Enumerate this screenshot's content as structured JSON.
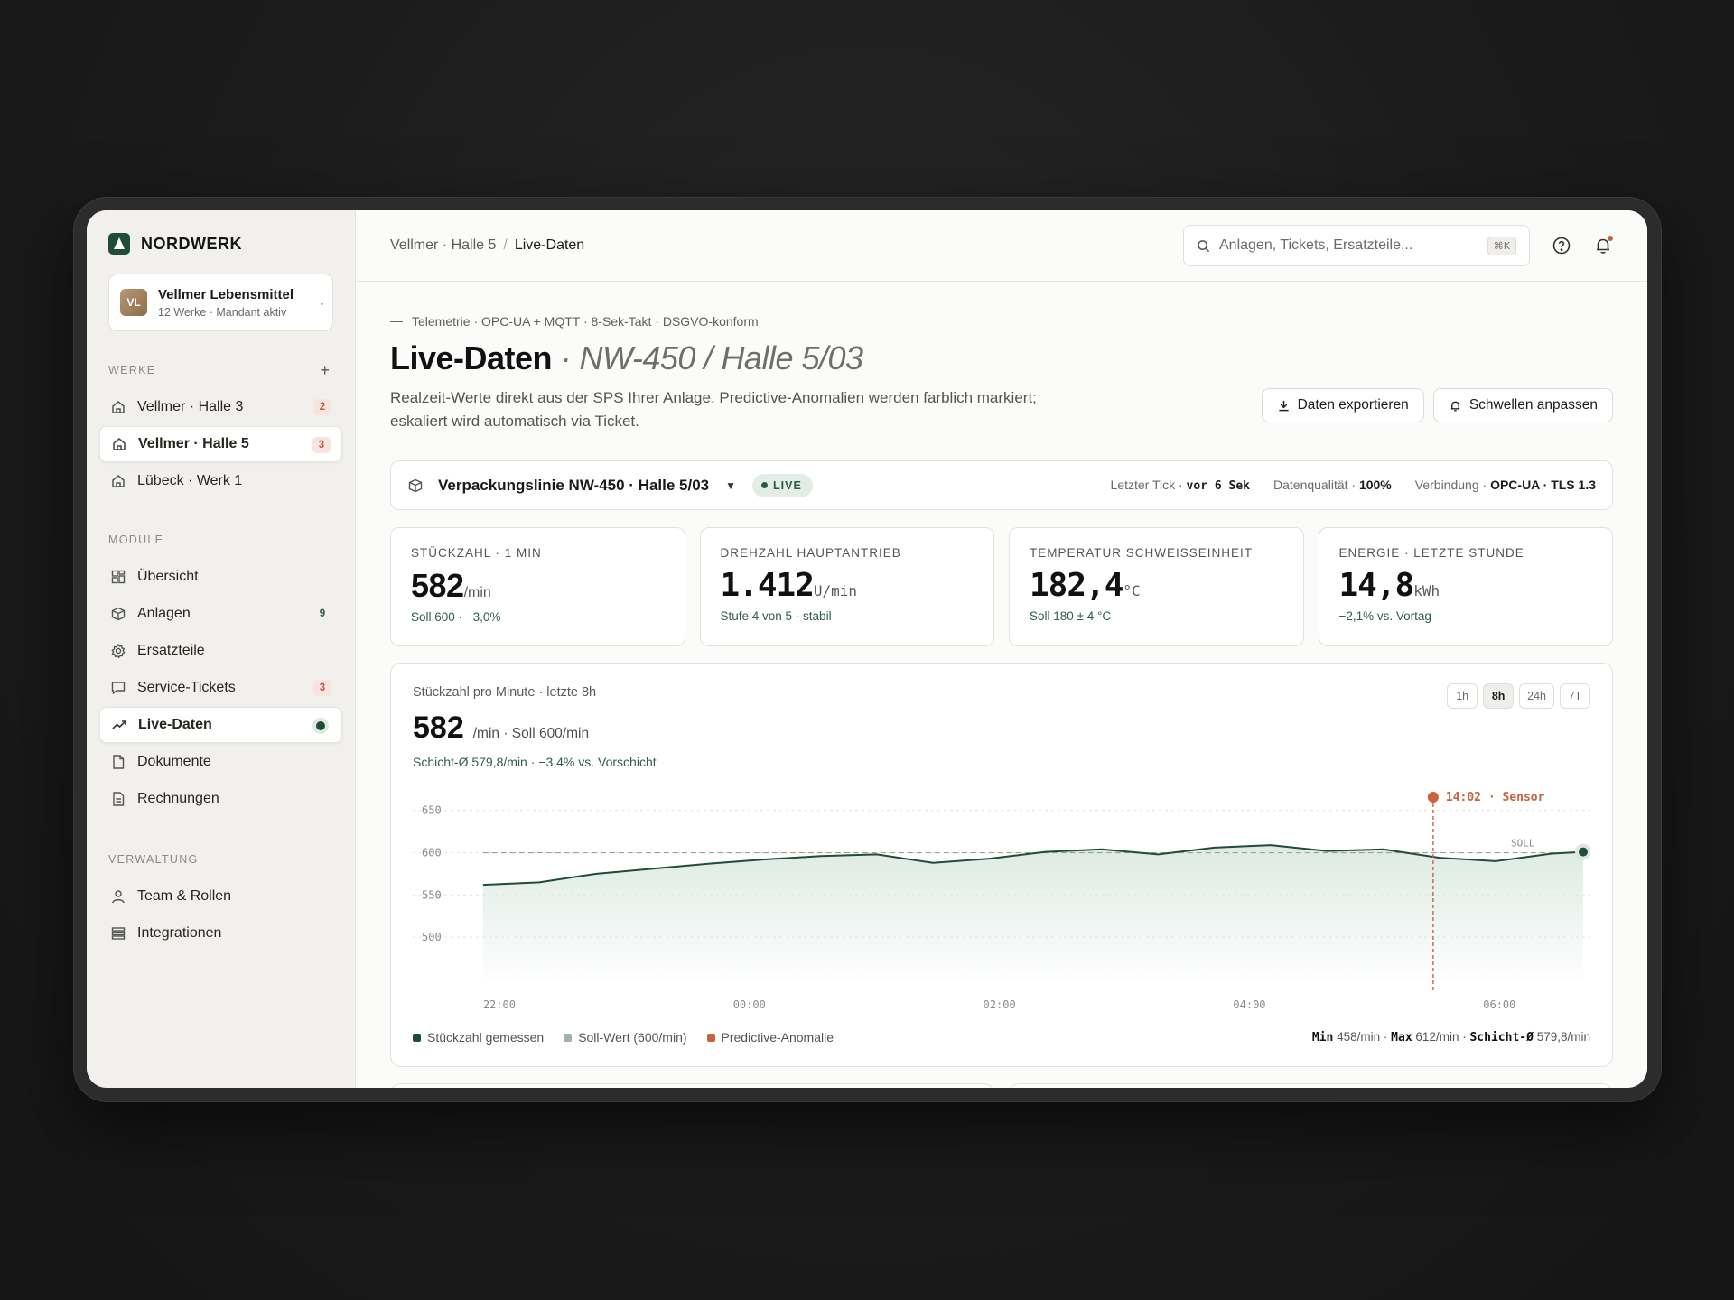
{
  "brand": {
    "name": "NORDWERK"
  },
  "tenant": {
    "initials": "VL",
    "name": "Vellmer Lebensmittel",
    "sub": "12 Werke · Mandant aktiv"
  },
  "sidebar": {
    "werke_label": "WERKE",
    "werke_add": "+",
    "werke": [
      {
        "label": "Vellmer · Halle 3",
        "badge": "2"
      },
      {
        "label": "Vellmer · Halle 5",
        "badge": "3"
      },
      {
        "label": "Lübeck · Werk 1"
      }
    ],
    "module_label": "MODULE",
    "module": [
      {
        "label": "Übersicht",
        "icon": "grid-icon"
      },
      {
        "label": "Anlagen",
        "icon": "box-icon",
        "badge": "9"
      },
      {
        "label": "Ersatzteile",
        "icon": "gear-icon"
      },
      {
        "label": "Service-Tickets",
        "icon": "chat-icon",
        "badge": "3"
      },
      {
        "label": "Live-Daten",
        "icon": "trend-icon"
      },
      {
        "label": "Dokumente",
        "icon": "document-icon"
      },
      {
        "label": "Rechnungen",
        "icon": "invoice-icon"
      }
    ],
    "verwaltung_label": "VERWALTUNG",
    "verwaltung": [
      {
        "label": "Team & Rollen",
        "icon": "user-icon"
      },
      {
        "label": "Integrationen",
        "icon": "list-icon"
      }
    ]
  },
  "topbar": {
    "crumb1": "Vellmer · Halle 5",
    "sep": "/",
    "crumb2": "Live-Daten",
    "search_placeholder": "Anlagen, Tickets, Ersatzteile...",
    "search_kbd": "⌘K"
  },
  "header": {
    "eyebrow": "Telemetrie · OPC-UA + MQTT · 8-Sek-Takt · DSGVO-konform",
    "title": "Live-Daten",
    "title_sub": "· NW-450 / Halle 5/03",
    "desc": "Realzeit-Werte direkt aus der SPS Ihrer Anlage. Predictive-Anomalien werden farblich markiert; eskaliert wird automatisch via Ticket.",
    "export_label": "Daten exportieren",
    "thresholds_label": "Schwellen anpassen"
  },
  "line": {
    "name": "Verpackungslinie NW-450 · Halle 5/03",
    "live": "LIVE",
    "tick_label": "Letzter Tick ·",
    "tick_value": "vor 6 Sek",
    "quality_label": "Datenqualität ·",
    "quality_value": "100%",
    "conn_label": "Verbindung ·",
    "conn_value": "OPC-UA · TLS 1.3"
  },
  "kpis": [
    {
      "label": "STÜCKZAHL · 1 MIN",
      "value": "582",
      "unit": "/min",
      "foot": "Soll 600 · −3,0%"
    },
    {
      "label": "DREHZAHL HAUPTANTRIEB",
      "value": "1.412",
      "unit": "U/min",
      "foot": "Stufe 4 von 5 · stabil"
    },
    {
      "label": "TEMPERATUR SCHWEISSEINHEIT",
      "value": "182,4",
      "unit": "°C",
      "foot": "Soll 180 ± 4 °C"
    },
    {
      "label": "ENERGIE · LETZTE STUNDE",
      "value": "14,8",
      "unit": "kWh",
      "foot": "−2,1% vs. Vortag"
    }
  ],
  "chart_card": {
    "title": "Stückzahl pro Minute · letzte 8h",
    "value": "582",
    "unit": "/min · Soll 600/min",
    "sub": "Schicht-Ø 579,8/min · −3,4% vs. Vorschicht",
    "ranges": [
      "1h",
      "8h",
      "24h",
      "7T"
    ],
    "active_range": "8h",
    "legend": [
      "Stückzahl gemessen",
      "Soll-Wert (600/min)",
      "Predictive-Anomalie"
    ],
    "stats": {
      "min_label": "Min",
      "min": "458/min",
      "max_label": "Max",
      "max": "612/min",
      "avg_label": "Schicht-Ø",
      "avg": "579,8/min",
      "sep": "·"
    }
  },
  "colors": {
    "accent": "#1f4d38",
    "fill": "#dbe9e1",
    "anomaly": "#c8623f",
    "target": "#a8a8a2"
  },
  "chart_data": {
    "type": "area",
    "title": "Stückzahl pro Minute · letzte 8h",
    "x_ticks": [
      "22:00",
      "00:00",
      "02:00",
      "04:00",
      "06:00"
    ],
    "x_range_hours": [
      -0.1,
      8.8
    ],
    "ylim": [
      450,
      670
    ],
    "y_ticks": [
      650,
      600,
      550,
      500
    ],
    "target": 600,
    "target_label": "SOLL",
    "annotation": {
      "x_hours": 7.6,
      "label": "14:02 · Sensor"
    },
    "series": [
      {
        "name": "Stückzahl gemessen",
        "x_hours": [
          0,
          0.45,
          0.9,
          1.35,
          1.8,
          2.25,
          2.7,
          3.15,
          3.6,
          4.05,
          4.5,
          4.95,
          5.4,
          5.85,
          6.3,
          6.75,
          7.2,
          7.65,
          8.1,
          8.55,
          8.8
        ],
        "values": [
          562,
          565,
          575,
          581,
          587,
          592,
          596,
          598,
          588,
          593,
          601,
          604,
          598,
          606,
          609,
          602,
          604,
          594,
          590,
          599,
          601
        ]
      }
    ]
  }
}
